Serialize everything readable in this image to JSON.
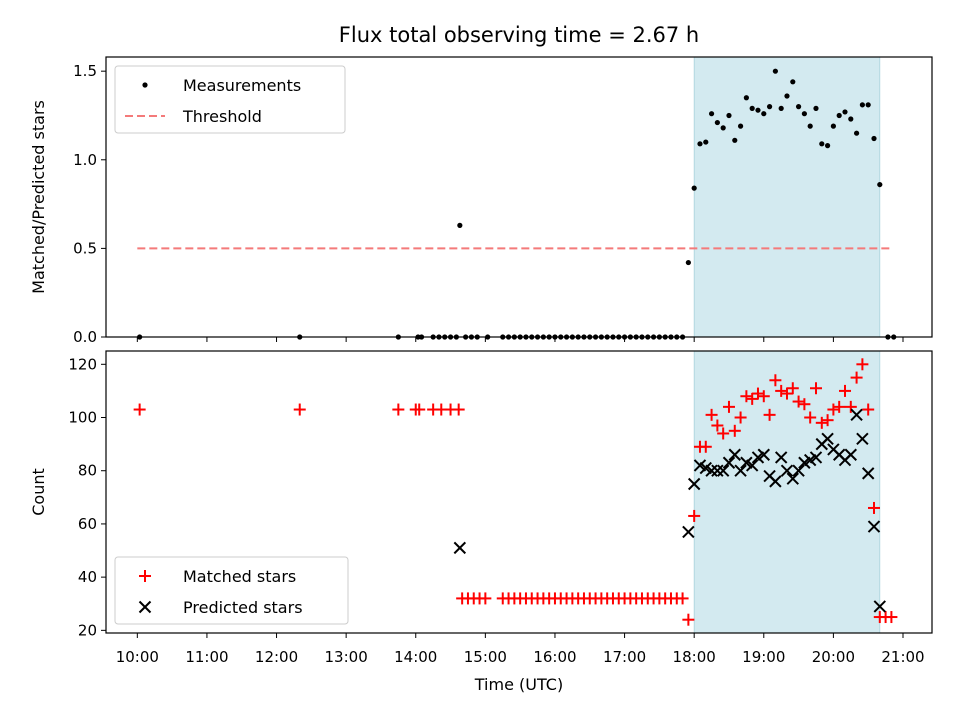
{
  "title": "Flux total observing time = 2.67 h",
  "xlabel": "Time (UTC)",
  "x_ticks": [
    "10:00",
    "11:00",
    "12:00",
    "13:00",
    "14:00",
    "15:00",
    "16:00",
    "17:00",
    "18:00",
    "19:00",
    "20:00",
    "21:00"
  ],
  "colors": {
    "shade": "#d3eaf0",
    "measurements": "#000000",
    "threshold": "#f47a7a",
    "matched": "#ff0000",
    "predicted": "#000000"
  },
  "chart_data": [
    {
      "type": "scatter",
      "ylabel": "Matched/Predicted stars",
      "ylim": [
        0,
        1.58
      ],
      "y_ticks": [
        "0.0",
        "0.5",
        "1.0",
        "1.5"
      ],
      "shaded_region": [
        "18:00",
        "20:40"
      ],
      "legend": {
        "placement": "top-left",
        "entries": [
          "Measurements",
          "Threshold"
        ]
      },
      "threshold": {
        "name": "Threshold",
        "y": 0.5,
        "x_range": [
          "10:00",
          "20:50"
        ]
      },
      "series": [
        {
          "name": "Measurements",
          "points": [
            [
              "10:02",
              0
            ],
            [
              "12:20",
              0
            ],
            [
              "13:45",
              0
            ],
            [
              "14:02",
              0
            ],
            [
              "14:05",
              0
            ],
            [
              "14:15",
              0
            ],
            [
              "14:20",
              0
            ],
            [
              "14:25",
              0
            ],
            [
              "14:30",
              0
            ],
            [
              "14:35",
              0
            ],
            [
              "14:38",
              0.63
            ],
            [
              "14:43",
              0
            ],
            [
              "14:48",
              0
            ],
            [
              "14:53",
              0
            ],
            [
              "15:02",
              0
            ],
            [
              "15:15",
              0
            ],
            [
              "15:20",
              0
            ],
            [
              "15:25",
              0
            ],
            [
              "15:30",
              0
            ],
            [
              "15:35",
              0
            ],
            [
              "15:40",
              0
            ],
            [
              "15:45",
              0
            ],
            [
              "15:50",
              0
            ],
            [
              "15:55",
              0
            ],
            [
              "16:00",
              0
            ],
            [
              "16:05",
              0
            ],
            [
              "16:10",
              0
            ],
            [
              "16:15",
              0
            ],
            [
              "16:20",
              0
            ],
            [
              "16:25",
              0
            ],
            [
              "16:30",
              0
            ],
            [
              "16:35",
              0
            ],
            [
              "16:40",
              0
            ],
            [
              "16:45",
              0
            ],
            [
              "16:50",
              0
            ],
            [
              "16:55",
              0
            ],
            [
              "17:00",
              0
            ],
            [
              "17:05",
              0
            ],
            [
              "17:10",
              0
            ],
            [
              "17:15",
              0
            ],
            [
              "17:20",
              0
            ],
            [
              "17:25",
              0
            ],
            [
              "17:30",
              0
            ],
            [
              "17:35",
              0
            ],
            [
              "17:40",
              0
            ],
            [
              "17:45",
              0
            ],
            [
              "17:50",
              0
            ],
            [
              "17:55",
              0.42
            ],
            [
              "18:00",
              0.84
            ],
            [
              "18:05",
              1.09
            ],
            [
              "18:10",
              1.1
            ],
            [
              "18:15",
              1.26
            ],
            [
              "18:20",
              1.21
            ],
            [
              "18:25",
              1.18
            ],
            [
              "18:30",
              1.25
            ],
            [
              "18:35",
              1.11
            ],
            [
              "18:40",
              1.19
            ],
            [
              "18:45",
              1.35
            ],
            [
              "18:50",
              1.29
            ],
            [
              "18:55",
              1.28
            ],
            [
              "19:00",
              1.26
            ],
            [
              "19:05",
              1.3
            ],
            [
              "19:10",
              1.5
            ],
            [
              "19:15",
              1.29
            ],
            [
              "19:20",
              1.36
            ],
            [
              "19:25",
              1.44
            ],
            [
              "19:30",
              1.3
            ],
            [
              "19:35",
              1.26
            ],
            [
              "19:40",
              1.19
            ],
            [
              "19:45",
              1.29
            ],
            [
              "19:50",
              1.09
            ],
            [
              "19:55",
              1.08
            ],
            [
              "20:00",
              1.19
            ],
            [
              "20:05",
              1.25
            ],
            [
              "20:10",
              1.27
            ],
            [
              "20:15",
              1.23
            ],
            [
              "20:20",
              1.15
            ],
            [
              "20:25",
              1.31
            ],
            [
              "20:30",
              1.31
            ],
            [
              "20:35",
              1.12
            ],
            [
              "20:40",
              0.86
            ],
            [
              "20:47",
              0
            ],
            [
              "20:52",
              0
            ]
          ]
        }
      ]
    },
    {
      "type": "scatter",
      "ylabel": "Count",
      "ylim": [
        19,
        125
      ],
      "y_ticks": [
        "20",
        "40",
        "60",
        "80",
        "100",
        "120"
      ],
      "shaded_region": [
        "18:00",
        "20:40"
      ],
      "legend": {
        "placement": "bottom-left",
        "entries": [
          "Matched stars",
          "Predicted stars"
        ]
      },
      "series": [
        {
          "name": "Matched stars",
          "marker": "plus",
          "points": [
            [
              "10:02",
              103
            ],
            [
              "12:20",
              103
            ],
            [
              "13:45",
              103
            ],
            [
              "14:00",
              103
            ],
            [
              "14:03",
              103
            ],
            [
              "14:15",
              103
            ],
            [
              "14:22",
              103
            ],
            [
              "14:30",
              103
            ],
            [
              "14:37",
              103
            ],
            [
              "14:40",
              32
            ],
            [
              "14:45",
              32
            ],
            [
              "14:50",
              32
            ],
            [
              "14:55",
              32
            ],
            [
              "15:00",
              32
            ],
            [
              "15:15",
              32
            ],
            [
              "15:20",
              32
            ],
            [
              "15:25",
              32
            ],
            [
              "15:30",
              32
            ],
            [
              "15:35",
              32
            ],
            [
              "15:40",
              32
            ],
            [
              "15:45",
              32
            ],
            [
              "15:50",
              32
            ],
            [
              "15:55",
              32
            ],
            [
              "16:00",
              32
            ],
            [
              "16:05",
              32
            ],
            [
              "16:10",
              32
            ],
            [
              "16:15",
              32
            ],
            [
              "16:20",
              32
            ],
            [
              "16:25",
              32
            ],
            [
              "16:30",
              32
            ],
            [
              "16:35",
              32
            ],
            [
              "16:40",
              32
            ],
            [
              "16:45",
              32
            ],
            [
              "16:50",
              32
            ],
            [
              "16:55",
              32
            ],
            [
              "17:00",
              32
            ],
            [
              "17:05",
              32
            ],
            [
              "17:10",
              32
            ],
            [
              "17:15",
              32
            ],
            [
              "17:20",
              32
            ],
            [
              "17:25",
              32
            ],
            [
              "17:30",
              32
            ],
            [
              "17:35",
              32
            ],
            [
              "17:40",
              32
            ],
            [
              "17:45",
              32
            ],
            [
              "17:50",
              32
            ],
            [
              "17:55",
              24
            ],
            [
              "18:00",
              63
            ],
            [
              "18:05",
              89
            ],
            [
              "18:10",
              89
            ],
            [
              "18:15",
              101
            ],
            [
              "18:20",
              97
            ],
            [
              "18:25",
              94
            ],
            [
              "18:30",
              104
            ],
            [
              "18:35",
              95
            ],
            [
              "18:40",
              100
            ],
            [
              "18:45",
              108
            ],
            [
              "18:50",
              107
            ],
            [
              "18:55",
              109
            ],
            [
              "19:00",
              108
            ],
            [
              "19:05",
              101
            ],
            [
              "19:10",
              114
            ],
            [
              "19:15",
              110
            ],
            [
              "19:20",
              109
            ],
            [
              "19:25",
              111
            ],
            [
              "19:30",
              106
            ],
            [
              "19:35",
              105
            ],
            [
              "19:40",
              100
            ],
            [
              "19:45",
              111
            ],
            [
              "19:50",
              98
            ],
            [
              "19:55",
              99
            ],
            [
              "20:00",
              103
            ],
            [
              "20:05",
              104
            ],
            [
              "20:10",
              110
            ],
            [
              "20:15",
              104
            ],
            [
              "20:20",
              115
            ],
            [
              "20:25",
              120
            ],
            [
              "20:30",
              103
            ],
            [
              "20:35",
              66
            ],
            [
              "20:40",
              25
            ],
            [
              "20:45",
              25
            ],
            [
              "20:50",
              25
            ]
          ]
        },
        {
          "name": "Predicted stars",
          "marker": "x",
          "points": [
            [
              "14:38",
              51
            ],
            [
              "17:55",
              57
            ],
            [
              "18:00",
              75
            ],
            [
              "18:05",
              82
            ],
            [
              "18:10",
              81
            ],
            [
              "18:15",
              80
            ],
            [
              "18:20",
              80
            ],
            [
              "18:25",
              80
            ],
            [
              "18:30",
              83
            ],
            [
              "18:35",
              86
            ],
            [
              "18:40",
              80
            ],
            [
              "18:45",
              83
            ],
            [
              "18:50",
              82
            ],
            [
              "18:55",
              85
            ],
            [
              "19:00",
              86
            ],
            [
              "19:05",
              78
            ],
            [
              "19:10",
              76
            ],
            [
              "19:15",
              85
            ],
            [
              "19:20",
              80
            ],
            [
              "19:25",
              77
            ],
            [
              "19:30",
              80
            ],
            [
              "19:35",
              83
            ],
            [
              "19:40",
              84
            ],
            [
              "19:45",
              85
            ],
            [
              "19:50",
              90
            ],
            [
              "19:55",
              92
            ],
            [
              "20:00",
              88
            ],
            [
              "20:05",
              86
            ],
            [
              "20:10",
              84
            ],
            [
              "20:15",
              86
            ],
            [
              "20:20",
              101
            ],
            [
              "20:25",
              92
            ],
            [
              "20:30",
              79
            ],
            [
              "20:35",
              59
            ],
            [
              "20:40",
              29
            ]
          ]
        }
      ]
    }
  ]
}
